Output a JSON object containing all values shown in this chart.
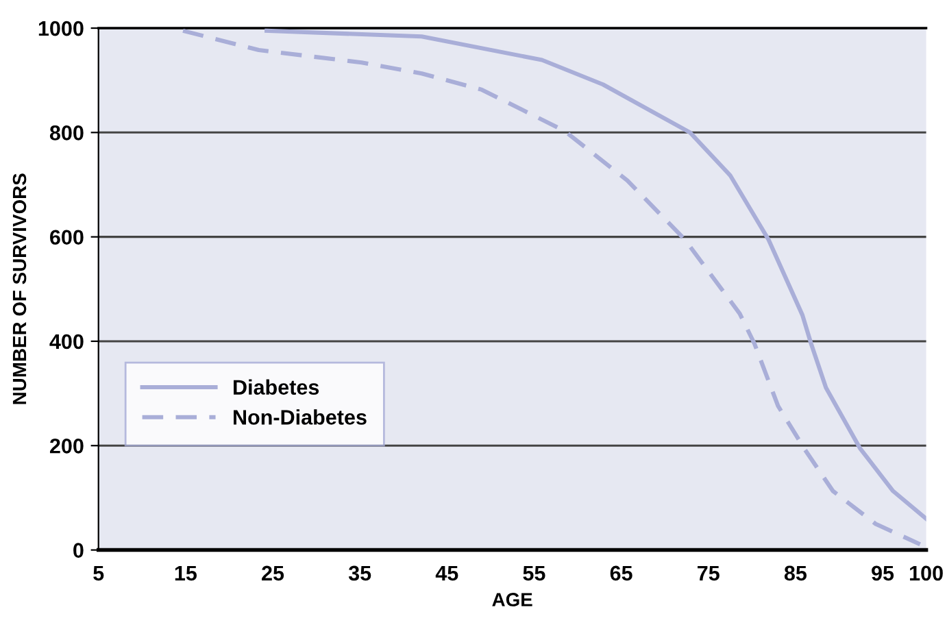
{
  "chart_data": {
    "type": "line",
    "xlabel": "AGE",
    "ylabel": "NUMBER OF SURVIVORS",
    "xlim": [
      5,
      100
    ],
    "xticks": [
      5,
      15,
      25,
      35,
      45,
      55,
      65,
      75,
      85,
      95,
      100
    ],
    "ylim": [
      0,
      1000
    ],
    "yticks": [
      0,
      200,
      400,
      600,
      800,
      1000
    ],
    "grid": "y",
    "legend": "bottom left",
    "series": [
      {
        "name": "Diabetes",
        "color": "#a9aed8",
        "line_style": "solid",
        "x": [
          24.3,
          42.1,
          55.9,
          62.9,
          72.9,
          77.5,
          81.9,
          85.8,
          86.8,
          88.5,
          92.4,
          96.2,
          100
        ],
        "values": [
          995,
          984,
          939,
          892,
          800,
          718,
          595,
          450,
          395,
          311,
          195,
          113,
          60
        ]
      },
      {
        "name": "Non-Diabetes",
        "color": "#a9aed8",
        "line_style": "dashed",
        "x": [
          14.7,
          23.4,
          35.2,
          42.1,
          49,
          58.5,
          65.7,
          72.3,
          78.6,
          80.3,
          83,
          86.1,
          89.3,
          94.2,
          99.3
        ],
        "values": [
          995,
          958,
          934,
          913,
          882,
          803,
          708,
          595,
          453,
          395,
          276,
          192,
          113,
          50,
          11
        ]
      }
    ]
  }
}
